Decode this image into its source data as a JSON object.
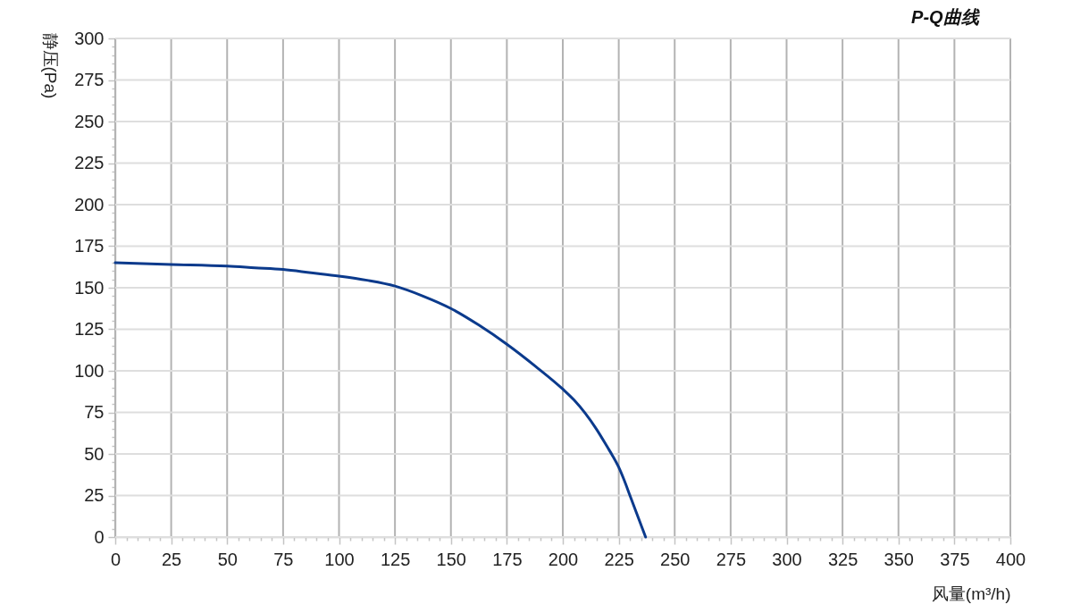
{
  "chart_data": {
    "type": "line",
    "title": "P-Q曲线",
    "xlabel": "风量(m³/h)",
    "ylabel": "静压(Pa)",
    "x": [
      0,
      25,
      50,
      62.5,
      75,
      87.5,
      100,
      112.5,
      125,
      137.5,
      150,
      162.5,
      175,
      188,
      200,
      205,
      210,
      215,
      220,
      222,
      225,
      227.5,
      230,
      237
    ],
    "series": [
      {
        "color": "#0b3a8c",
        "values": [
          165,
          164,
          163,
          162,
          161,
          159,
          157,
          154.5,
          151,
          145,
          137.5,
          127.5,
          116,
          102.5,
          89,
          82.5,
          74.5,
          65,
          54,
          49.5,
          42,
          34,
          25,
          0
        ]
      }
    ],
    "xlim": [
      0,
      400
    ],
    "ylim": [
      0,
      300
    ],
    "xticks": [
      0,
      {
        "value": 5,
        "label": null
      },
      {
        "value": 10,
        "label": null
      },
      {
        "value": 15,
        "label": null
      },
      {
        "value": 20,
        "label": null
      },
      25,
      {
        "value": 30,
        "label": null
      },
      {
        "value": 35,
        "label": null
      },
      {
        "value": 40,
        "label": null
      },
      {
        "value": 45,
        "label": null
      },
      50,
      {
        "value": 55,
        "label": null
      },
      {
        "value": 60,
        "label": null
      },
      {
        "value": 65,
        "label": null
      },
      {
        "value": 70,
        "label": null
      },
      75,
      {
        "value": 80,
        "label": null
      },
      {
        "value": 85,
        "label": null
      },
      {
        "value": 90,
        "label": null
      },
      {
        "value": 95,
        "label": null
      },
      100,
      {
        "value": 105,
        "label": null
      },
      {
        "value": 110,
        "label": null
      },
      {
        "value": 115,
        "label": null
      },
      {
        "value": 120,
        "label": null
      },
      125,
      {
        "value": 130,
        "label": null
      },
      {
        "value": 135,
        "label": null
      },
      {
        "value": 140,
        "label": null
      },
      {
        "value": 145,
        "label": null
      },
      150,
      {
        "value": 155,
        "label": null
      },
      {
        "value": 160,
        "label": null
      },
      {
        "value": 165,
        "label": null
      },
      {
        "value": 170,
        "label": null
      },
      175,
      {
        "value": 180,
        "label": null
      },
      {
        "value": 185,
        "label": null
      },
      {
        "value": 190,
        "label": null
      },
      {
        "value": 195,
        "label": null
      },
      200,
      {
        "value": 205,
        "label": null
      },
      {
        "value": 210,
        "label": null
      },
      {
        "value": 215,
        "label": null
      },
      {
        "value": 220,
        "label": null
      },
      225,
      {
        "value": 230,
        "label": null
      },
      {
        "value": 235,
        "label": null
      },
      {
        "value": 240,
        "label": null
      },
      {
        "value": 245,
        "label": null
      },
      250,
      {
        "value": 255,
        "label": null
      },
      {
        "value": 260,
        "label": null
      },
      {
        "value": 265,
        "label": null
      },
      {
        "value": 270,
        "label": null
      },
      275,
      {
        "value": 280,
        "label": null
      },
      {
        "value": 285,
        "label": null
      },
      {
        "value": 290,
        "label": null
      },
      {
        "value": 295,
        "label": null
      },
      300,
      {
        "value": 305,
        "label": null
      },
      {
        "value": 310,
        "label": null
      },
      {
        "value": 315,
        "label": null
      },
      {
        "value": 320,
        "label": null
      },
      325,
      {
        "value": 330,
        "label": null
      },
      {
        "value": 335,
        "label": null
      },
      {
        "value": 340,
        "label": null
      },
      {
        "value": 345,
        "label": null
      },
      350,
      {
        "value": 355,
        "label": null
      },
      {
        "value": 360,
        "label": null
      },
      {
        "value": 365,
        "label": null
      },
      {
        "value": 370,
        "label": null
      },
      375,
      {
        "value": 380,
        "label": null
      },
      {
        "value": 385,
        "label": null
      },
      {
        "value": 390,
        "label": null
      },
      {
        "value": 395,
        "label": null
      },
      400
    ],
    "yticks": [
      0,
      {
        "value": 5,
        "label": null
      },
      {
        "value": 10,
        "label": null
      },
      {
        "value": 15,
        "label": null
      },
      {
        "value": 20,
        "label": null
      },
      25,
      {
        "value": 30,
        "label": null
      },
      {
        "value": 35,
        "label": null
      },
      {
        "value": 40,
        "label": null
      },
      {
        "value": 45,
        "label": null
      },
      50,
      {
        "value": 55,
        "label": null
      },
      {
        "value": 60,
        "label": null
      },
      {
        "value": 65,
        "label": null
      },
      {
        "value": 70,
        "label": null
      },
      75,
      {
        "value": 80,
        "label": null
      },
      {
        "value": 85,
        "label": null
      },
      {
        "value": 90,
        "label": null
      },
      {
        "value": 95,
        "label": null
      },
      100,
      {
        "value": 105,
        "label": null
      },
      {
        "value": 110,
        "label": null
      },
      {
        "value": 115,
        "label": null
      },
      {
        "value": 120,
        "label": null
      },
      125,
      {
        "value": 130,
        "label": null
      },
      {
        "value": 135,
        "label": null
      },
      {
        "value": 140,
        "label": null
      },
      {
        "value": 145,
        "label": null
      },
      150,
      {
        "value": 155,
        "label": null
      },
      {
        "value": 160,
        "label": null
      },
      {
        "value": 165,
        "label": null
      },
      {
        "value": 170,
        "label": null
      },
      175,
      {
        "value": 180,
        "label": null
      },
      {
        "value": 185,
        "label": null
      },
      {
        "value": 190,
        "label": null
      },
      {
        "value": 195,
        "label": null
      },
      200,
      {
        "value": 205,
        "label": null
      },
      {
        "value": 210,
        "label": null
      },
      {
        "value": 215,
        "label": null
      },
      {
        "value": 220,
        "label": null
      },
      225,
      {
        "value": 230,
        "label": null
      },
      {
        "value": 235,
        "label": null
      },
      {
        "value": 240,
        "label": null
      },
      {
        "value": 245,
        "label": null
      },
      250,
      {
        "value": 255,
        "label": null
      },
      {
        "value": 260,
        "label": null
      },
      {
        "value": 265,
        "label": null
      },
      {
        "value": 270,
        "label": null
      },
      275,
      {
        "value": 280,
        "label": null
      },
      {
        "value": 285,
        "label": null
      },
      {
        "value": 290,
        "label": null
      },
      {
        "value": 295,
        "label": null
      },
      300
    ],
    "grid": true,
    "line_style": "solid"
  }
}
